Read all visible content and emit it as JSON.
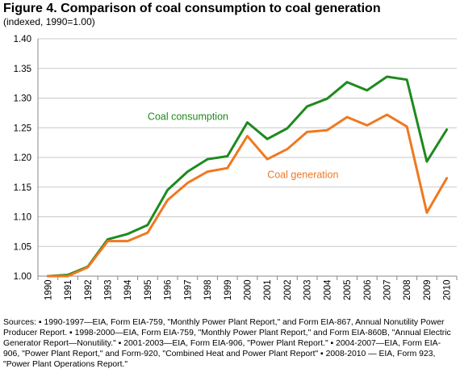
{
  "header": {
    "title": "Figure 4. Comparison of coal consumption to coal generation",
    "subtitle": "(indexed, 1990=1.00)"
  },
  "sources": "Sources: ▪ 1990-1997—EIA, Form EIA-759, \"Monthly Power Plant Report,\" and Form EIA-867, Annual Nonutility Power Producer Report. ▪ 1998-2000—EIA, Form EIA-759, \"Monthly Power Plant Report,\" and Form EIA-860B, \"Annual Electric Generator Report—Nonutility.\" ▪ 2001-2003—EIA, Form EIA-906, \"Power Plant Report.\" ▪ 2004-2007—EIA, Form EIA-906, \"Power Plant Report,\" and Form-920, \"Combined Heat and Power Plant Report\" ▪ 2008-2010 — EIA, Form 923, \"Power Plant Operations Report.\"",
  "chart_data": {
    "type": "line",
    "title": "Figure 4. Comparison of coal consumption to coal generation",
    "subtitle": "(indexed, 1990=1.00)",
    "xlabel": "",
    "ylabel": "",
    "ylim": [
      1.0,
      1.4
    ],
    "yticks": [
      "1.00",
      "1.05",
      "1.10",
      "1.15",
      "1.20",
      "1.25",
      "1.30",
      "1.35",
      "1.40"
    ],
    "grid": true,
    "x": [
      "1990",
      "1991",
      "1992",
      "1993",
      "1994",
      "1995",
      "1996",
      "1997",
      "1998",
      "1999",
      "2000",
      "2001",
      "2002",
      "2003",
      "2004",
      "2005",
      "2006",
      "2007",
      "2008",
      "2009",
      "2010"
    ],
    "series": [
      {
        "name": "Coal consumption",
        "color": "#1e8a1e",
        "values": [
          1.0,
          1.002,
          1.016,
          1.062,
          1.071,
          1.086,
          1.145,
          1.176,
          1.197,
          1.202,
          1.259,
          1.231,
          1.249,
          1.286,
          1.299,
          1.327,
          1.313,
          1.336,
          1.331,
          1.193,
          1.247
        ]
      },
      {
        "name": "Coal generation",
        "color": "#f07820",
        "values": [
          1.0,
          1.0,
          1.015,
          1.059,
          1.059,
          1.073,
          1.128,
          1.157,
          1.176,
          1.182,
          1.236,
          1.197,
          1.214,
          1.243,
          1.246,
          1.268,
          1.254,
          1.272,
          1.252,
          1.107,
          1.165
        ]
      }
    ]
  }
}
